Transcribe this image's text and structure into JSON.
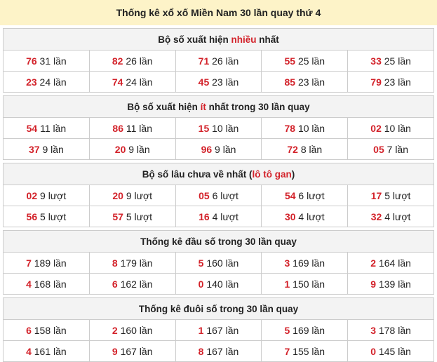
{
  "title": "Thống kê xổ xố Miền Nam 30 lần quay thứ 4",
  "accent_color": "#d3222a",
  "sections": [
    {
      "title_pre": "Bộ số xuất hiện ",
      "title_hl": "nhiều",
      "title_post": " nhất",
      "rows": [
        [
          {
            "n": "76",
            "v": "31 lần"
          },
          {
            "n": "82",
            "v": "26 lần"
          },
          {
            "n": "71",
            "v": "26 lần"
          },
          {
            "n": "55",
            "v": "25 lần"
          },
          {
            "n": "33",
            "v": "25 lần"
          }
        ],
        [
          {
            "n": "23",
            "v": "24 lần"
          },
          {
            "n": "74",
            "v": "24 lần"
          },
          {
            "n": "45",
            "v": "23 lần"
          },
          {
            "n": "85",
            "v": "23 lần"
          },
          {
            "n": "79",
            "v": "23 lần"
          }
        ]
      ]
    },
    {
      "title_pre": "Bộ số xuất hiện ",
      "title_hl": "ít",
      "title_post": " nhất trong 30 lần quay",
      "rows": [
        [
          {
            "n": "54",
            "v": "11 lần"
          },
          {
            "n": "86",
            "v": "11 lần"
          },
          {
            "n": "15",
            "v": "10 lần"
          },
          {
            "n": "78",
            "v": "10 lần"
          },
          {
            "n": "02",
            "v": "10 lần"
          }
        ],
        [
          {
            "n": "37",
            "v": "9 lần"
          },
          {
            "n": "20",
            "v": "9 lần"
          },
          {
            "n": "96",
            "v": "9 lần"
          },
          {
            "n": "72",
            "v": "8 lần"
          },
          {
            "n": "05",
            "v": "7 lần"
          }
        ]
      ]
    },
    {
      "title_pre": "Bộ số lâu chưa về nhất (",
      "title_hl": "lô tô gan",
      "title_post": ")",
      "rows": [
        [
          {
            "n": "02",
            "v": "9 lượt"
          },
          {
            "n": "20",
            "v": "9 lượt"
          },
          {
            "n": "05",
            "v": "6 lượt"
          },
          {
            "n": "54",
            "v": "6 lượt"
          },
          {
            "n": "17",
            "v": "5 lượt"
          }
        ],
        [
          {
            "n": "56",
            "v": "5 lượt"
          },
          {
            "n": "57",
            "v": "5 lượt"
          },
          {
            "n": "16",
            "v": "4 lượt"
          },
          {
            "n": "30",
            "v": "4 lượt"
          },
          {
            "n": "32",
            "v": "4 lượt"
          }
        ]
      ]
    },
    {
      "title_pre": "Thống kê đầu số trong 30 lần quay",
      "title_hl": "",
      "title_post": "",
      "rows": [
        [
          {
            "n": "7",
            "v": "189 lần"
          },
          {
            "n": "8",
            "v": "179 lần"
          },
          {
            "n": "5",
            "v": "160 lần"
          },
          {
            "n": "3",
            "v": "169 lần"
          },
          {
            "n": "2",
            "v": "164 lần"
          }
        ],
        [
          {
            "n": "4",
            "v": "168 lần"
          },
          {
            "n": "6",
            "v": "162 lần"
          },
          {
            "n": "0",
            "v": "140 lần"
          },
          {
            "n": "1",
            "v": "150 lần"
          },
          {
            "n": "9",
            "v": "139 lần"
          }
        ]
      ]
    },
    {
      "title_pre": "Thống kê đuôi số trong 30 lần quay",
      "title_hl": "",
      "title_post": "",
      "rows": [
        [
          {
            "n": "6",
            "v": "158 lần"
          },
          {
            "n": "2",
            "v": "160 lần"
          },
          {
            "n": "1",
            "v": "167 lần"
          },
          {
            "n": "5",
            "v": "169 lần"
          },
          {
            "n": "3",
            "v": "178 lần"
          }
        ],
        [
          {
            "n": "4",
            "v": "161 lần"
          },
          {
            "n": "9",
            "v": "167 lần"
          },
          {
            "n": "8",
            "v": "167 lần"
          },
          {
            "n": "7",
            "v": "155 lần"
          },
          {
            "n": "0",
            "v": "145 lần"
          }
        ]
      ]
    }
  ]
}
